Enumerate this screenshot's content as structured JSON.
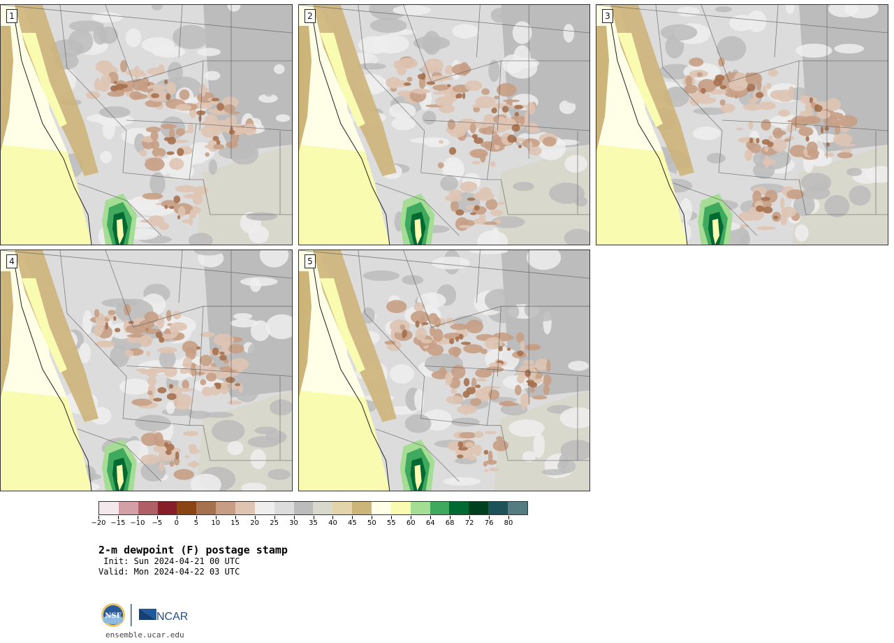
{
  "title": "2-m dewpoint (F) postage stamp",
  "init": " Init: Sun 2024-04-21 00 UTC",
  "valid": "Valid: Mon 2024-04-22 03 UTC",
  "stamps": [
    {
      "label": "1"
    },
    {
      "label": "2"
    },
    {
      "label": "3"
    },
    {
      "label": "4"
    },
    {
      "label": "5"
    }
  ],
  "colorbar": {
    "colors": [
      "#f5e8ec",
      "#d4a0a7",
      "#b05f66",
      "#861d27",
      "#8b4513",
      "#a6714f",
      "#c79e85",
      "#dfc4b2",
      "#eeeeee",
      "#dcdcdc",
      "#bcbcbc",
      "#d9d8cc",
      "#e3d4ac",
      "#cdb479",
      "#fffee6",
      "#f8fbb0",
      "#a6dd94",
      "#3faa5d",
      "#006a32",
      "#00401e",
      "#1d525a",
      "#547c81"
    ],
    "tick_labels": [
      "−20",
      "−15",
      "−10",
      "−5",
      "0",
      "5",
      "10",
      "15",
      "20",
      "25",
      "30",
      "35",
      "40",
      "45",
      "50",
      "55",
      "60",
      "64",
      "68",
      "72",
      "76",
      "80"
    ]
  },
  "logos": {
    "nsf": "NSF",
    "ncar": "NCAR"
  },
  "website": "ensemble.ucar.edu"
}
